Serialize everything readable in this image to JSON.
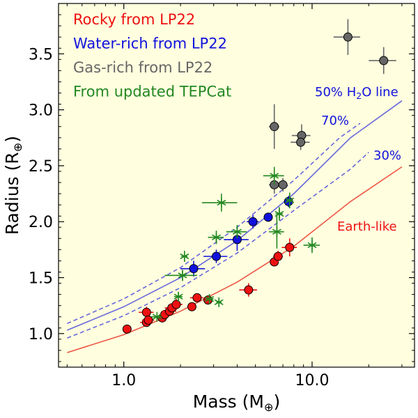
{
  "chart_data": {
    "type": "scatter",
    "xscale": "log",
    "xlim": [
      0.45,
      35
    ],
    "ylim": [
      0.7,
      3.95
    ],
    "xlabel": "Mass (M",
    "xlabel_sub": "⊕",
    "xlabel_end": ")",
    "ylabel": "Radius (R",
    "ylabel_sub": "⊕",
    "ylabel_end": ")",
    "x_ticks": [
      {
        "v": 1.0,
        "label": "1.0"
      },
      {
        "v": 10.0,
        "label": "10.0"
      }
    ],
    "y_ticks": [
      {
        "v": 1.0,
        "label": "1.0"
      },
      {
        "v": 1.5,
        "label": "1.5"
      },
      {
        "v": 2.0,
        "label": "2.0"
      },
      {
        "v": 2.5,
        "label": "2.5"
      },
      {
        "v": 3.0,
        "label": "3.0"
      },
      {
        "v": 3.5,
        "label": "3.5"
      }
    ],
    "colors": {
      "background": "#ffffdf",
      "rocky": "#ee1111",
      "water": "#1111dd",
      "gas": "#666666",
      "tepcat": "#228822",
      "line_water": "#6666dd",
      "line_earth": "#ee5544"
    },
    "legend": [
      {
        "label": "Rocky from LP22",
        "series": "rocky"
      },
      {
        "label": "Water-rich from LP22",
        "series": "water"
      },
      {
        "label": "Gas-rich from LP22",
        "series": "gas"
      },
      {
        "label": "From updated TEPCat",
        "series": "tepcat"
      }
    ],
    "curves": [
      {
        "name": "water50",
        "style": "solid",
        "color_key": "line_water",
        "label": "50% H",
        "label_sub": "2",
        "label_end": "O line",
        "points": [
          [
            0.5,
            1.03
          ],
          [
            1,
            1.24
          ],
          [
            2,
            1.5
          ],
          [
            4,
            1.83
          ],
          [
            8,
            2.25
          ],
          [
            16,
            2.75
          ],
          [
            30,
            3.08
          ]
        ]
      },
      {
        "name": "water70",
        "style": "dashed",
        "color_key": "line_water",
        "label": "70%",
        "points": [
          [
            0.5,
            1.09
          ],
          [
            1,
            1.31
          ],
          [
            2,
            1.59
          ],
          [
            4,
            1.95
          ],
          [
            8,
            2.37
          ],
          [
            14,
            2.75
          ],
          [
            18,
            2.88
          ]
        ]
      },
      {
        "name": "water30",
        "style": "dashed",
        "color_key": "line_water",
        "label": "30%",
        "points": [
          [
            0.5,
            0.96
          ],
          [
            1,
            1.16
          ],
          [
            2,
            1.41
          ],
          [
            4,
            1.72
          ],
          [
            8,
            2.1
          ],
          [
            16,
            2.47
          ],
          [
            20,
            2.62
          ]
        ]
      },
      {
        "name": "earth",
        "style": "solid",
        "color_key": "line_earth",
        "label": "Earth-like",
        "points": [
          [
            0.5,
            0.83
          ],
          [
            1,
            0.99
          ],
          [
            2,
            1.2
          ],
          [
            4,
            1.46
          ],
          [
            8,
            1.78
          ],
          [
            16,
            2.18
          ],
          [
            30,
            2.49
          ]
        ]
      }
    ],
    "series": {
      "rocky": [
        {
          "x": 1.04,
          "y": 1.04,
          "xerr": 0.03,
          "yerr": 0.02
        },
        {
          "x": 1.32,
          "y": 1.19,
          "xerr": 0.12,
          "yerr": 0.05
        },
        {
          "x": 1.32,
          "y": 1.1,
          "xerr": 0.1,
          "yerr": 0.04
        },
        {
          "x": 1.35,
          "y": 1.12,
          "xerr": 0.1,
          "yerr": 0.03
        },
        {
          "x": 1.6,
          "y": 1.14,
          "xerr": 0.1,
          "yerr": 0.03
        },
        {
          "x": 1.65,
          "y": 1.17,
          "xerr": 0.1,
          "yerr": 0.03
        },
        {
          "x": 1.75,
          "y": 1.2,
          "xerr": 0.15,
          "yerr": 0.04
        },
        {
          "x": 1.8,
          "y": 1.23,
          "xerr": 0.15,
          "yerr": 0.04
        },
        {
          "x": 1.9,
          "y": 1.26,
          "xerr": 0.15,
          "yerr": 0.05
        },
        {
          "x": 2.3,
          "y": 1.24,
          "xerr": 0.1,
          "yerr": 0.03
        },
        {
          "x": 2.45,
          "y": 1.32,
          "xerr": 0.2,
          "yerr": 0.04
        },
        {
          "x": 2.8,
          "y": 1.3,
          "xerr": 0.1,
          "yerr": 0.03
        },
        {
          "x": 4.6,
          "y": 1.39,
          "xerr": 0.5,
          "yerr": 0.06
        },
        {
          "x": 6.3,
          "y": 1.64,
          "xerr": 0.3,
          "yerr": 0.04
        },
        {
          "x": 6.6,
          "y": 1.69,
          "xerr": 0.4,
          "yerr": 0.05
        },
        {
          "x": 7.6,
          "y": 1.77,
          "xerr": 0.7,
          "yerr": 0.08
        }
      ],
      "water": [
        {
          "x": 2.35,
          "y": 1.58,
          "xerr": 0.35,
          "yerr": 0.07
        },
        {
          "x": 3.1,
          "y": 1.69,
          "xerr": 0.45,
          "yerr": 0.06
        },
        {
          "x": 4.0,
          "y": 1.84,
          "xerr": 0.6,
          "yerr": 0.1
        },
        {
          "x": 4.85,
          "y": 2.0,
          "xerr": 0.35,
          "yerr": 0.06
        },
        {
          "x": 5.85,
          "y": 2.04,
          "xerr": 0.3,
          "yerr": 0.04
        },
        {
          "x": 7.5,
          "y": 2.18,
          "xerr": 0.4,
          "yerr": 0.05
        }
      ],
      "gas": [
        {
          "x": 6.3,
          "y": 2.85,
          "xerr": 0.4,
          "yerr": 0.2
        },
        {
          "x": 6.3,
          "y": 2.33,
          "xerr": 0.4,
          "yerr": 0.08
        },
        {
          "x": 7.0,
          "y": 2.33,
          "xerr": 0.4,
          "yerr": 0.06
        },
        {
          "x": 8.8,
          "y": 2.77,
          "xerr": 1.0,
          "yerr": 0.1
        },
        {
          "x": 8.7,
          "y": 2.71,
          "xerr": 1.0,
          "yerr": 0.07
        },
        {
          "x": 15.5,
          "y": 3.65,
          "xerr": 2.5,
          "yerr": 0.16
        },
        {
          "x": 24.0,
          "y": 3.44,
          "xerr": 4.0,
          "yerr": 0.12
        }
      ],
      "tepcat": [
        {
          "x": 1.5,
          "y": 1.15,
          "xerr": 0.1,
          "yerr": 0.03
        },
        {
          "x": 1.95,
          "y": 1.33,
          "xerr": 0.1,
          "yerr": 0.04
        },
        {
          "x": 2.1,
          "y": 1.69,
          "xerr": 0.08,
          "yerr": 0.05
        },
        {
          "x": 2.05,
          "y": 1.52,
          "xerr": 0.4,
          "yerr": 0.05
        },
        {
          "x": 2.85,
          "y": 1.31,
          "xerr": 0.15,
          "yerr": 0.04
        },
        {
          "x": 3.2,
          "y": 1.28,
          "xerr": 0.1,
          "yerr": 0.03
        },
        {
          "x": 3.1,
          "y": 1.86,
          "xerr": 0.3,
          "yerr": 0.06
        },
        {
          "x": 3.3,
          "y": 2.17,
          "xerr": 0.7,
          "yerr": 0.08
        },
        {
          "x": 4.0,
          "y": 1.91,
          "xerr": 0.5,
          "yerr": 0.06
        },
        {
          "x": 6.3,
          "y": 2.41,
          "xerr": 0.8,
          "yerr": 0.08
        },
        {
          "x": 6.5,
          "y": 1.91,
          "xerr": 0.6,
          "yerr": 0.15
        },
        {
          "x": 6.7,
          "y": 2.07,
          "xerr": 0.3,
          "yerr": 0.06
        },
        {
          "x": 7.6,
          "y": 2.19,
          "xerr": 0.3,
          "yerr": 0.07
        },
        {
          "x": 10.0,
          "y": 1.79,
          "xerr": 1.0,
          "yerr": 0.07
        }
      ]
    }
  }
}
